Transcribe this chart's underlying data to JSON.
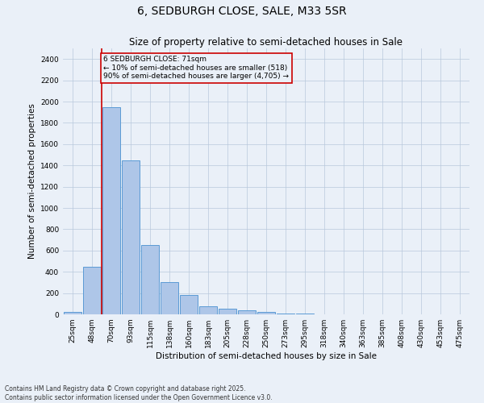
{
  "title": "6, SEDBURGH CLOSE, SALE, M33 5SR",
  "subtitle": "Size of property relative to semi-detached houses in Sale",
  "xlabel": "Distribution of semi-detached houses by size in Sale",
  "ylabel": "Number of semi-detached properties",
  "categories": [
    "25sqm",
    "48sqm",
    "70sqm",
    "93sqm",
    "115sqm",
    "138sqm",
    "160sqm",
    "183sqm",
    "205sqm",
    "228sqm",
    "250sqm",
    "273sqm",
    "295sqm",
    "318sqm",
    "340sqm",
    "363sqm",
    "385sqm",
    "408sqm",
    "430sqm",
    "453sqm",
    "475sqm"
  ],
  "values": [
    25,
    450,
    1950,
    1450,
    650,
    300,
    185,
    75,
    50,
    35,
    20,
    10,
    5,
    2,
    1,
    1,
    0,
    0,
    0,
    0,
    0
  ],
  "bar_color": "#aec6e8",
  "bar_edge_color": "#5b9bd5",
  "vline_color": "#cc0000",
  "annotation_text": "6 SEDBURGH CLOSE: 71sqm\n← 10% of semi-detached houses are smaller (518)\n90% of semi-detached houses are larger (4,705) →",
  "annotation_box_color": "#cc0000",
  "ylim": [
    0,
    2500
  ],
  "yticks": [
    0,
    200,
    400,
    600,
    800,
    1000,
    1200,
    1400,
    1600,
    1800,
    2000,
    2200,
    2400
  ],
  "background_color": "#eaf0f8",
  "footer_text": "Contains HM Land Registry data © Crown copyright and database right 2025.\nContains public sector information licensed under the Open Government Licence v3.0.",
  "title_fontsize": 10,
  "subtitle_fontsize": 8.5,
  "tick_fontsize": 6.5,
  "label_fontsize": 7.5,
  "footer_fontsize": 5.5
}
